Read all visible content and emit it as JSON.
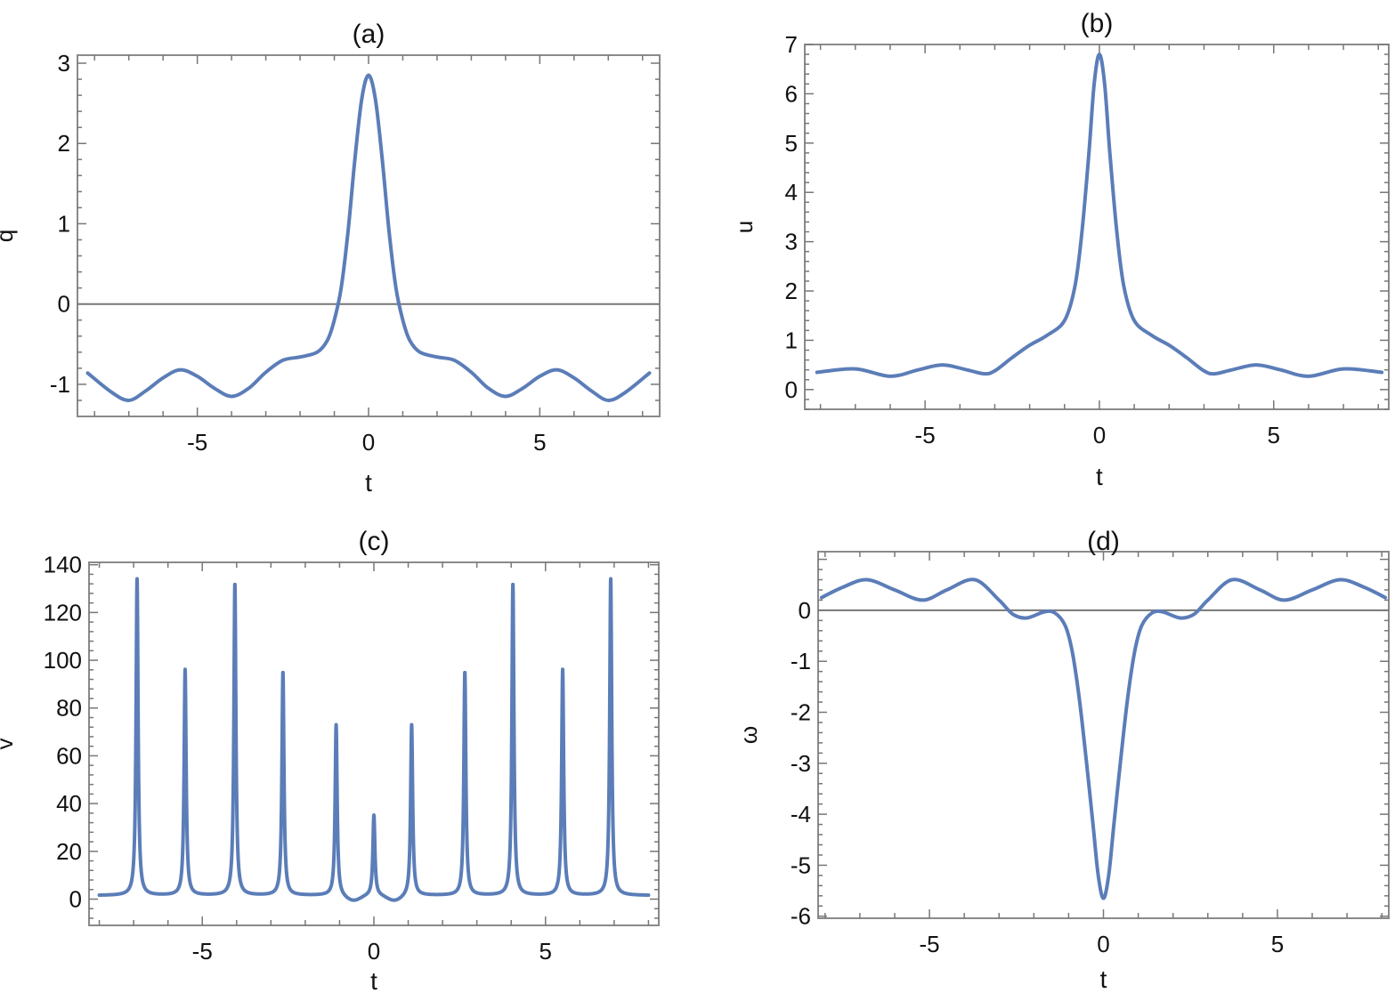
{
  "chart_data": [
    {
      "type": "line",
      "title": "(a)",
      "xlabel": "t",
      "ylabel": "q",
      "xlim": [
        -8.5,
        8.5
      ],
      "ylim": [
        -1.4,
        3.1
      ],
      "xticks": [
        {
          "v": -5,
          "label": "-5"
        },
        {
          "v": 0,
          "label": "0"
        },
        {
          "v": 5,
          "label": "5"
        }
      ],
      "yticks": [
        {
          "v": -1,
          "label": "-1"
        },
        {
          "v": 0,
          "label": "0"
        },
        {
          "v": 1,
          "label": "1"
        },
        {
          "v": 2,
          "label": "2"
        },
        {
          "v": 3,
          "label": "3"
        }
      ],
      "zero_line": true,
      "series": [
        {
          "name": "q",
          "color": "#5b7db8",
          "symmetric": true,
          "x": [
            0,
            0.2,
            0.4,
            0.6,
            0.8,
            1.0,
            1.2,
            1.5,
            2.0,
            2.5,
            3.0,
            3.5,
            4.0,
            4.5,
            5.0,
            5.5,
            6.0,
            6.5,
            7.0,
            7.5,
            8.2
          ],
          "y": [
            2.85,
            2.55,
            1.8,
            0.9,
            0.2,
            -0.2,
            -0.45,
            -0.6,
            -0.66,
            -0.7,
            -0.85,
            -1.05,
            -1.15,
            -1.05,
            -0.9,
            -0.82,
            -0.92,
            -1.08,
            -1.2,
            -1.1,
            -0.86
          ]
        }
      ]
    },
    {
      "type": "line",
      "title": "(b)",
      "xlabel": "t",
      "ylabel": "u",
      "xlim": [
        -8.45,
        8.3
      ],
      "ylim": [
        -0.4,
        7.0
      ],
      "xticks": [
        {
          "v": -5,
          "label": "-5"
        },
        {
          "v": 0,
          "label": "0"
        },
        {
          "v": 5,
          "label": "5"
        }
      ],
      "yticks": [
        {
          "v": 0,
          "label": "0"
        },
        {
          "v": 1,
          "label": "1"
        },
        {
          "v": 2,
          "label": "2"
        },
        {
          "v": 3,
          "label": "3"
        },
        {
          "v": 4,
          "label": "4"
        },
        {
          "v": 5,
          "label": "5"
        },
        {
          "v": 6,
          "label": "6"
        },
        {
          "v": 7,
          "label": "7"
        }
      ],
      "zero_line": false,
      "series": [
        {
          "name": "u",
          "color": "#5b7db8",
          "symmetric": true,
          "x": [
            0,
            0.15,
            0.3,
            0.5,
            0.7,
            1.0,
            1.5,
            2.0,
            2.5,
            3.0,
            3.3,
            3.8,
            4.5,
            5.2,
            6.0,
            7.0,
            8.1
          ],
          "y": [
            6.8,
            6.2,
            4.8,
            3.2,
            2.1,
            1.4,
            1.1,
            0.9,
            0.65,
            0.38,
            0.32,
            0.4,
            0.5,
            0.4,
            0.27,
            0.42,
            0.35
          ]
        }
      ]
    },
    {
      "type": "line",
      "title": "(c)",
      "xlabel": "t",
      "ylabel": "v",
      "xlim": [
        -8.3,
        8.3
      ],
      "ylim": [
        -11,
        141
      ],
      "xticks": [
        {
          "v": -5,
          "label": "-5"
        },
        {
          "v": 0,
          "label": "0"
        },
        {
          "v": 5,
          "label": "5"
        }
      ],
      "yticks": [
        {
          "v": 0,
          "label": "0"
        },
        {
          "v": 20,
          "label": "20"
        },
        {
          "v": 40,
          "label": "40"
        },
        {
          "v": 60,
          "label": "60"
        },
        {
          "v": 80,
          "label": "80"
        },
        {
          "v": 100,
          "label": "100"
        },
        {
          "v": 120,
          "label": "120"
        },
        {
          "v": 140,
          "label": "140"
        }
      ],
      "zero_line": false,
      "series": [
        {
          "name": "v",
          "color": "#5b7db8",
          "baseline": 1.5,
          "x_range": [
            -8.0,
            8.0
          ],
          "peaks": [
            {
              "t": -6.9,
              "v": 134
            },
            {
              "t": -5.5,
              "v": 96
            },
            {
              "t": -4.05,
              "v": 132
            },
            {
              "t": -2.65,
              "v": 95
            },
            {
              "t": -1.1,
              "v": 73
            },
            {
              "t": 0,
              "v": 35
            },
            {
              "t": 1.1,
              "v": 73
            },
            {
              "t": 2.65,
              "v": 95
            },
            {
              "t": 4.05,
              "v": 132
            },
            {
              "t": 5.5,
              "v": 96
            },
            {
              "t": 6.9,
              "v": 134
            }
          ]
        }
      ]
    },
    {
      "type": "line",
      "title": "(d)",
      "xlabel": "t",
      "ylabel": "ω",
      "xlim": [
        -8.2,
        8.2
      ],
      "ylim": [
        -6.04,
        1.15
      ],
      "xticks": [
        {
          "v": -5,
          "label": "-5"
        },
        {
          "v": 0,
          "label": "0"
        },
        {
          "v": 5,
          "label": "5"
        }
      ],
      "yticks": [
        {
          "v": -6,
          "label": "-6"
        },
        {
          "v": -5,
          "label": "-5"
        },
        {
          "v": -4,
          "label": "-4"
        },
        {
          "v": -3,
          "label": "-3"
        },
        {
          "v": -2,
          "label": "-2"
        },
        {
          "v": -1,
          "label": "-1"
        },
        {
          "v": 0,
          "label": "0"
        }
      ],
      "zero_line": true,
      "series": [
        {
          "name": "ω",
          "color": "#5b7db8",
          "symmetric": true,
          "x": [
            0,
            0.15,
            0.3,
            0.5,
            0.7,
            0.9,
            1.1,
            1.4,
            1.7,
            2.2,
            2.6,
            3.0,
            3.7,
            4.5,
            5.2,
            6.0,
            6.8,
            7.5,
            8.1
          ],
          "y": [
            -5.65,
            -5.2,
            -4.2,
            -2.9,
            -1.7,
            -0.8,
            -0.3,
            -0.05,
            -0.03,
            -0.15,
            -0.08,
            0.2,
            0.6,
            0.4,
            0.2,
            0.4,
            0.6,
            0.45,
            0.25
          ]
        }
      ]
    }
  ]
}
